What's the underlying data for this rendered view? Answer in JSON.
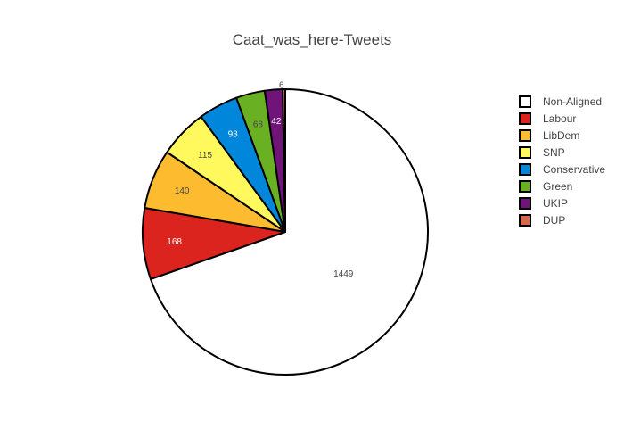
{
  "chart_data": {
    "type": "pie",
    "title": "Caat_was_here-Tweets",
    "direction": "clockwise",
    "start": "12 o'clock",
    "legend_position": "right",
    "slices": [
      {
        "label": "Non-Aligned",
        "value": 1449,
        "color": "#ffffff",
        "text_color": "#444444"
      },
      {
        "label": "Labour",
        "value": 168,
        "color": "#dc241f",
        "text_color": "#ffffff"
      },
      {
        "label": "LibDem",
        "value": 140,
        "color": "#fdbb30",
        "text_color": "#444444"
      },
      {
        "label": "SNP",
        "value": 115,
        "color": "#fff95d",
        "text_color": "#444444"
      },
      {
        "label": "Conservative",
        "value": 93,
        "color": "#0087dc",
        "text_color": "#ffffff"
      },
      {
        "label": "Green",
        "value": 68,
        "color": "#6ab023",
        "text_color": "#444444"
      },
      {
        "label": "UKIP",
        "value": 42,
        "color": "#70147a",
        "text_color": "#ffffff"
      },
      {
        "label": "DUP",
        "value": 6,
        "color": "#d46a4c",
        "text_color": "#444444"
      }
    ]
  }
}
